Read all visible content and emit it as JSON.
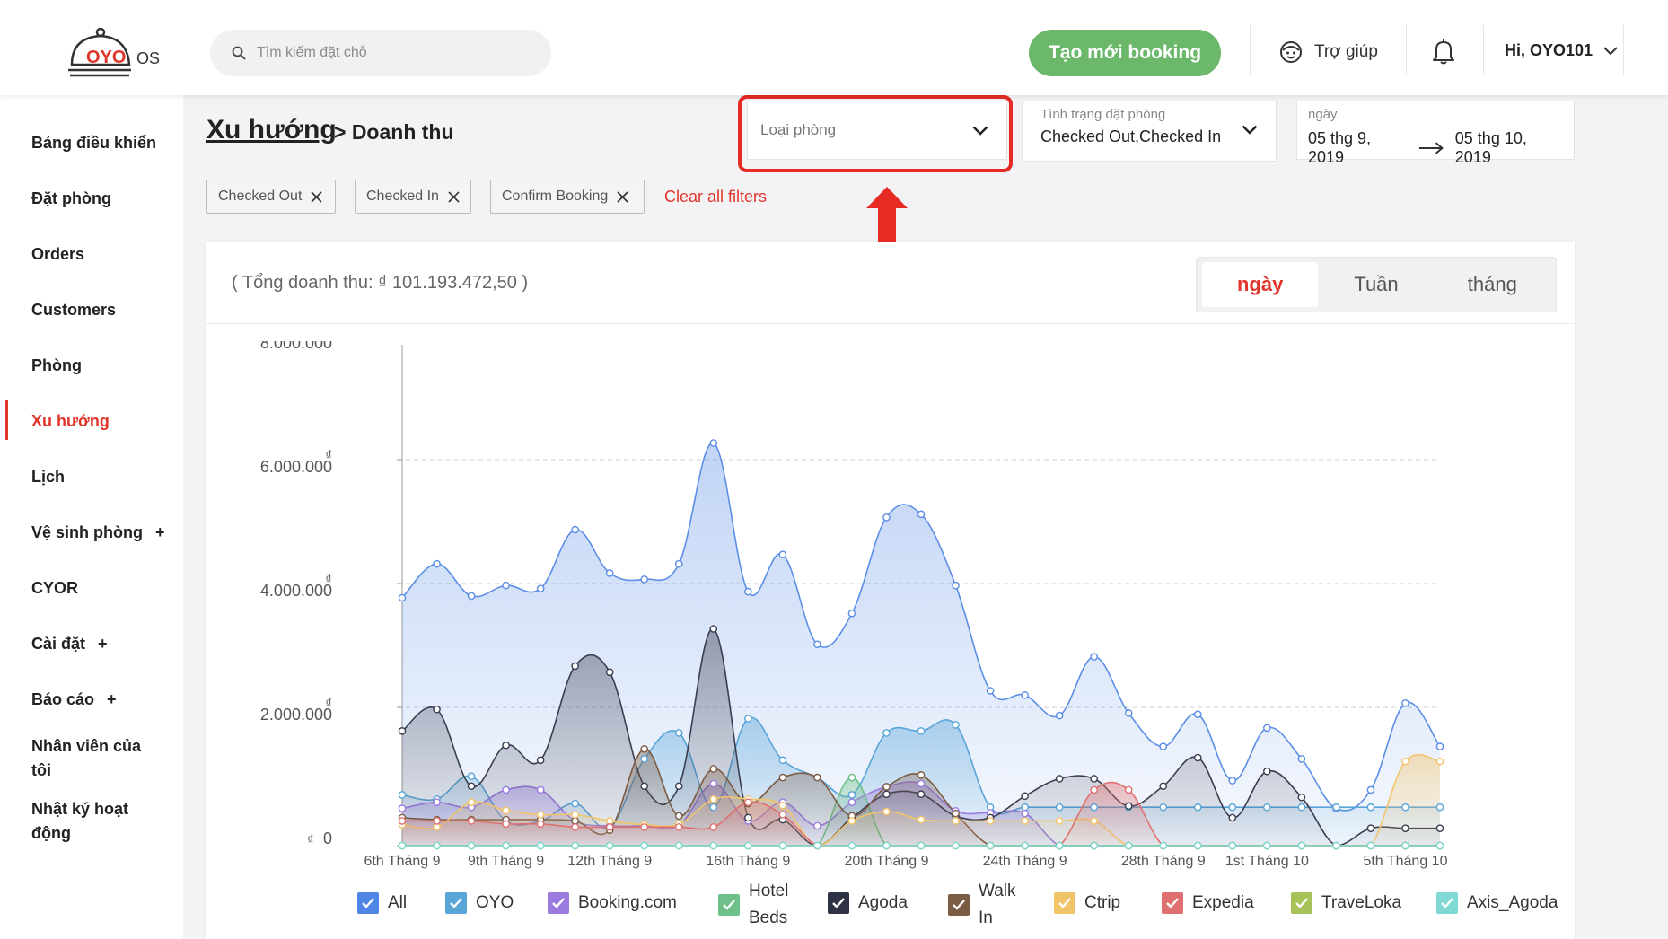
{
  "header": {
    "logo_text": "OYO OS",
    "search_placeholder": "Tìm kiếm đặt chỗ",
    "new_booking_label": "Tạo mới booking",
    "help_label": "Trợ giúp",
    "user_label": "Hi, OYO101"
  },
  "sidebar": {
    "items": [
      {
        "label": "Bảng điều khiển"
      },
      {
        "label": "Đặt phòng"
      },
      {
        "label": "Orders"
      },
      {
        "label": "Customers"
      },
      {
        "label": "Phòng"
      },
      {
        "label": "Xu hướng"
      },
      {
        "label": "Lịch"
      },
      {
        "label": "Vệ sinh phòng"
      },
      {
        "label": "CYOR"
      },
      {
        "label": "Cài đặt"
      },
      {
        "label": "Báo cáo"
      },
      {
        "label": "Nhân viên của tôi"
      },
      {
        "label": "Nhật ký hoạt động"
      }
    ],
    "plus": "+"
  },
  "breadcrumb": {
    "main": "Xu hướng",
    "sub": "> Doanh thu"
  },
  "filters": {
    "room_type_placeholder": "Loại phòng",
    "status_label": "Tình trạng đặt phòng",
    "status_value": "Checked Out,Checked In",
    "date_label": "ngày",
    "date_from": "05 thg 9, 2019",
    "date_to": "05 thg 10, 2019",
    "chips": [
      "Checked Out",
      "Checked In",
      "Confirm Booking"
    ],
    "clear_all": "Clear all filters"
  },
  "card": {
    "total_label": "( Tổng doanh thu: ₫ 101.193.472,50 )",
    "periods": [
      "ngày",
      "Tuần",
      "tháng"
    ],
    "active_period": "ngày"
  },
  "chart_data": {
    "type": "area",
    "title": "",
    "y_currency": "₫",
    "ylim": [
      0,
      8000000
    ],
    "y_ticks": [
      {
        "value": 0,
        "label": "0"
      },
      {
        "value": 2000000,
        "label": "2.000.000"
      },
      {
        "value": 4000000,
        "label": "4.000.000"
      },
      {
        "value": 6000000,
        "label": "6.000.000"
      },
      {
        "value": 8000000,
        "label": "8.000.000"
      }
    ],
    "x_tick_labels": [
      {
        "index": 0,
        "label": "6th Tháng 9"
      },
      {
        "index": 3,
        "label": "9th Tháng 9"
      },
      {
        "index": 6,
        "label": "12th Tháng 9"
      },
      {
        "index": 10,
        "label": "16th Tháng 9"
      },
      {
        "index": 14,
        "label": "20th Tháng 9"
      },
      {
        "index": 18,
        "label": "24th Tháng 9"
      },
      {
        "index": 22,
        "label": "28th Tháng 9"
      },
      {
        "index": 25,
        "label": "1st Tháng 10"
      },
      {
        "index": 29,
        "label": "5th Tháng 10"
      }
    ],
    "grid": "horizontal-dashed",
    "legend_position": "bottom",
    "series": [
      {
        "name": "All",
        "color": "#5b8ee6",
        "values": [
          4000000,
          4550000,
          4030000,
          4200000,
          4150000,
          5100000,
          4400000,
          4300000,
          4550000,
          6500000,
          4100000,
          4700000,
          3250000,
          3750000,
          5300000,
          5350000,
          4200000,
          2500000,
          2430000,
          2100000,
          3050000,
          2140000,
          1600000,
          2120000,
          1050000,
          1900000,
          1400000,
          600000,
          900000,
          2300000,
          1600000
        ]
      },
      {
        "name": "OYO",
        "color": "#5aa5d8",
        "values": [
          820000,
          750000,
          1120000,
          400000,
          400000,
          680000,
          300000,
          1400000,
          1820000,
          620000,
          2050000,
          1380000,
          1100000,
          820000,
          1820000,
          1850000,
          1950000,
          620000,
          620000,
          620000,
          620000,
          620000,
          620000,
          620000,
          620000,
          620000,
          620000,
          620000,
          620000,
          620000,
          620000
        ]
      },
      {
        "name": "Booking.com",
        "color": "#9b7be0",
        "values": [
          600000,
          700000,
          620000,
          900000,
          900000,
          400000,
          320000,
          320000,
          330000,
          1000000,
          400000,
          700000,
          320000,
          700000,
          950000,
          1000000,
          560000,
          530000,
          520000,
          0,
          0,
          0,
          0,
          0,
          0,
          0,
          0,
          0,
          0,
          0,
          0
        ]
      },
      {
        "name": "Hotel Beds",
        "color": "#6fbf8a",
        "values": [
          0,
          0,
          0,
          0,
          0,
          0,
          0,
          0,
          0,
          0,
          0,
          0,
          0,
          1100000,
          0,
          0,
          0,
          0,
          0,
          0,
          0,
          0,
          0,
          0,
          0,
          0,
          0,
          0,
          0,
          0,
          0
        ]
      },
      {
        "name": "Agoda",
        "color": "#3a3d4f",
        "values": [
          1850000,
          2200000,
          960000,
          1620000,
          1380000,
          2900000,
          2800000,
          960000,
          960000,
          3500000,
          450000,
          420000,
          0,
          450000,
          830000,
          830000,
          480000,
          450000,
          800000,
          1080000,
          1080000,
          640000,
          960000,
          1420000,
          450000,
          1200000,
          780000,
          0,
          280000,
          280000,
          280000
        ]
      },
      {
        "name": "Walk In",
        "color": "#7a5b44",
        "values": [
          450000,
          420000,
          420000,
          420000,
          420000,
          400000,
          250000,
          1560000,
          480000,
          1240000,
          680000,
          1100000,
          1100000,
          480000,
          950000,
          1140000,
          520000,
          0,
          0,
          0,
          0,
          0,
          0,
          0,
          0,
          0,
          0,
          0,
          0,
          0,
          0
        ]
      },
      {
        "name": "Ctrip",
        "color": "#f2c46a",
        "values": [
          340000,
          300000,
          700000,
          570000,
          500000,
          500000,
          400000,
          340000,
          350000,
          750000,
          750000,
          650000,
          0,
          400000,
          550000,
          420000,
          400000,
          400000,
          400000,
          400000,
          400000,
          0,
          0,
          0,
          0,
          0,
          0,
          0,
          0,
          1360000,
          1360000
        ]
      },
      {
        "name": "Expedia",
        "color": "#e07070",
        "values": [
          400000,
          400000,
          400000,
          350000,
          350000,
          300000,
          300000,
          300000,
          300000,
          300000,
          700000,
          500000,
          0,
          0,
          0,
          0,
          0,
          0,
          0,
          0,
          900000,
          900000,
          0,
          0,
          0,
          0,
          0,
          0,
          0,
          0,
          0
        ]
      },
      {
        "name": "TraveLoka",
        "color": "#a8c25a",
        "values": [
          0,
          0,
          0,
          0,
          0,
          0,
          0,
          0,
          0,
          0,
          0,
          0,
          0,
          0,
          0,
          0,
          0,
          0,
          0,
          0,
          0,
          0,
          0,
          0,
          0,
          0,
          0,
          0,
          0,
          0,
          0
        ]
      },
      {
        "name": "Axis_Agoda",
        "color": "#7fdad6",
        "values": [
          0,
          0,
          0,
          0,
          0,
          0,
          0,
          0,
          0,
          0,
          0,
          0,
          0,
          0,
          0,
          0,
          0,
          0,
          0,
          0,
          0,
          0,
          0,
          0,
          0,
          0,
          0,
          0,
          0,
          0,
          0
        ]
      }
    ]
  },
  "legend": {
    "items": [
      {
        "label": "All",
        "color": "#4f86e6"
      },
      {
        "label": "OYO",
        "color": "#5aa5d8"
      },
      {
        "label": "Booking.com",
        "color": "#9b7be0"
      },
      {
        "label": "Hotel Beds",
        "color": "#6fbf8a"
      },
      {
        "label": "Agoda",
        "color": "#2f3244"
      },
      {
        "label": "Walk In",
        "color": "#7a5b44"
      },
      {
        "label": "Ctrip",
        "color": "#f2c46a"
      },
      {
        "label": "Expedia",
        "color": "#e07070"
      },
      {
        "label": "TraveLoka",
        "color": "#a8c25a"
      },
      {
        "label": "Axis_Agoda",
        "color": "#7fdad6"
      }
    ]
  }
}
